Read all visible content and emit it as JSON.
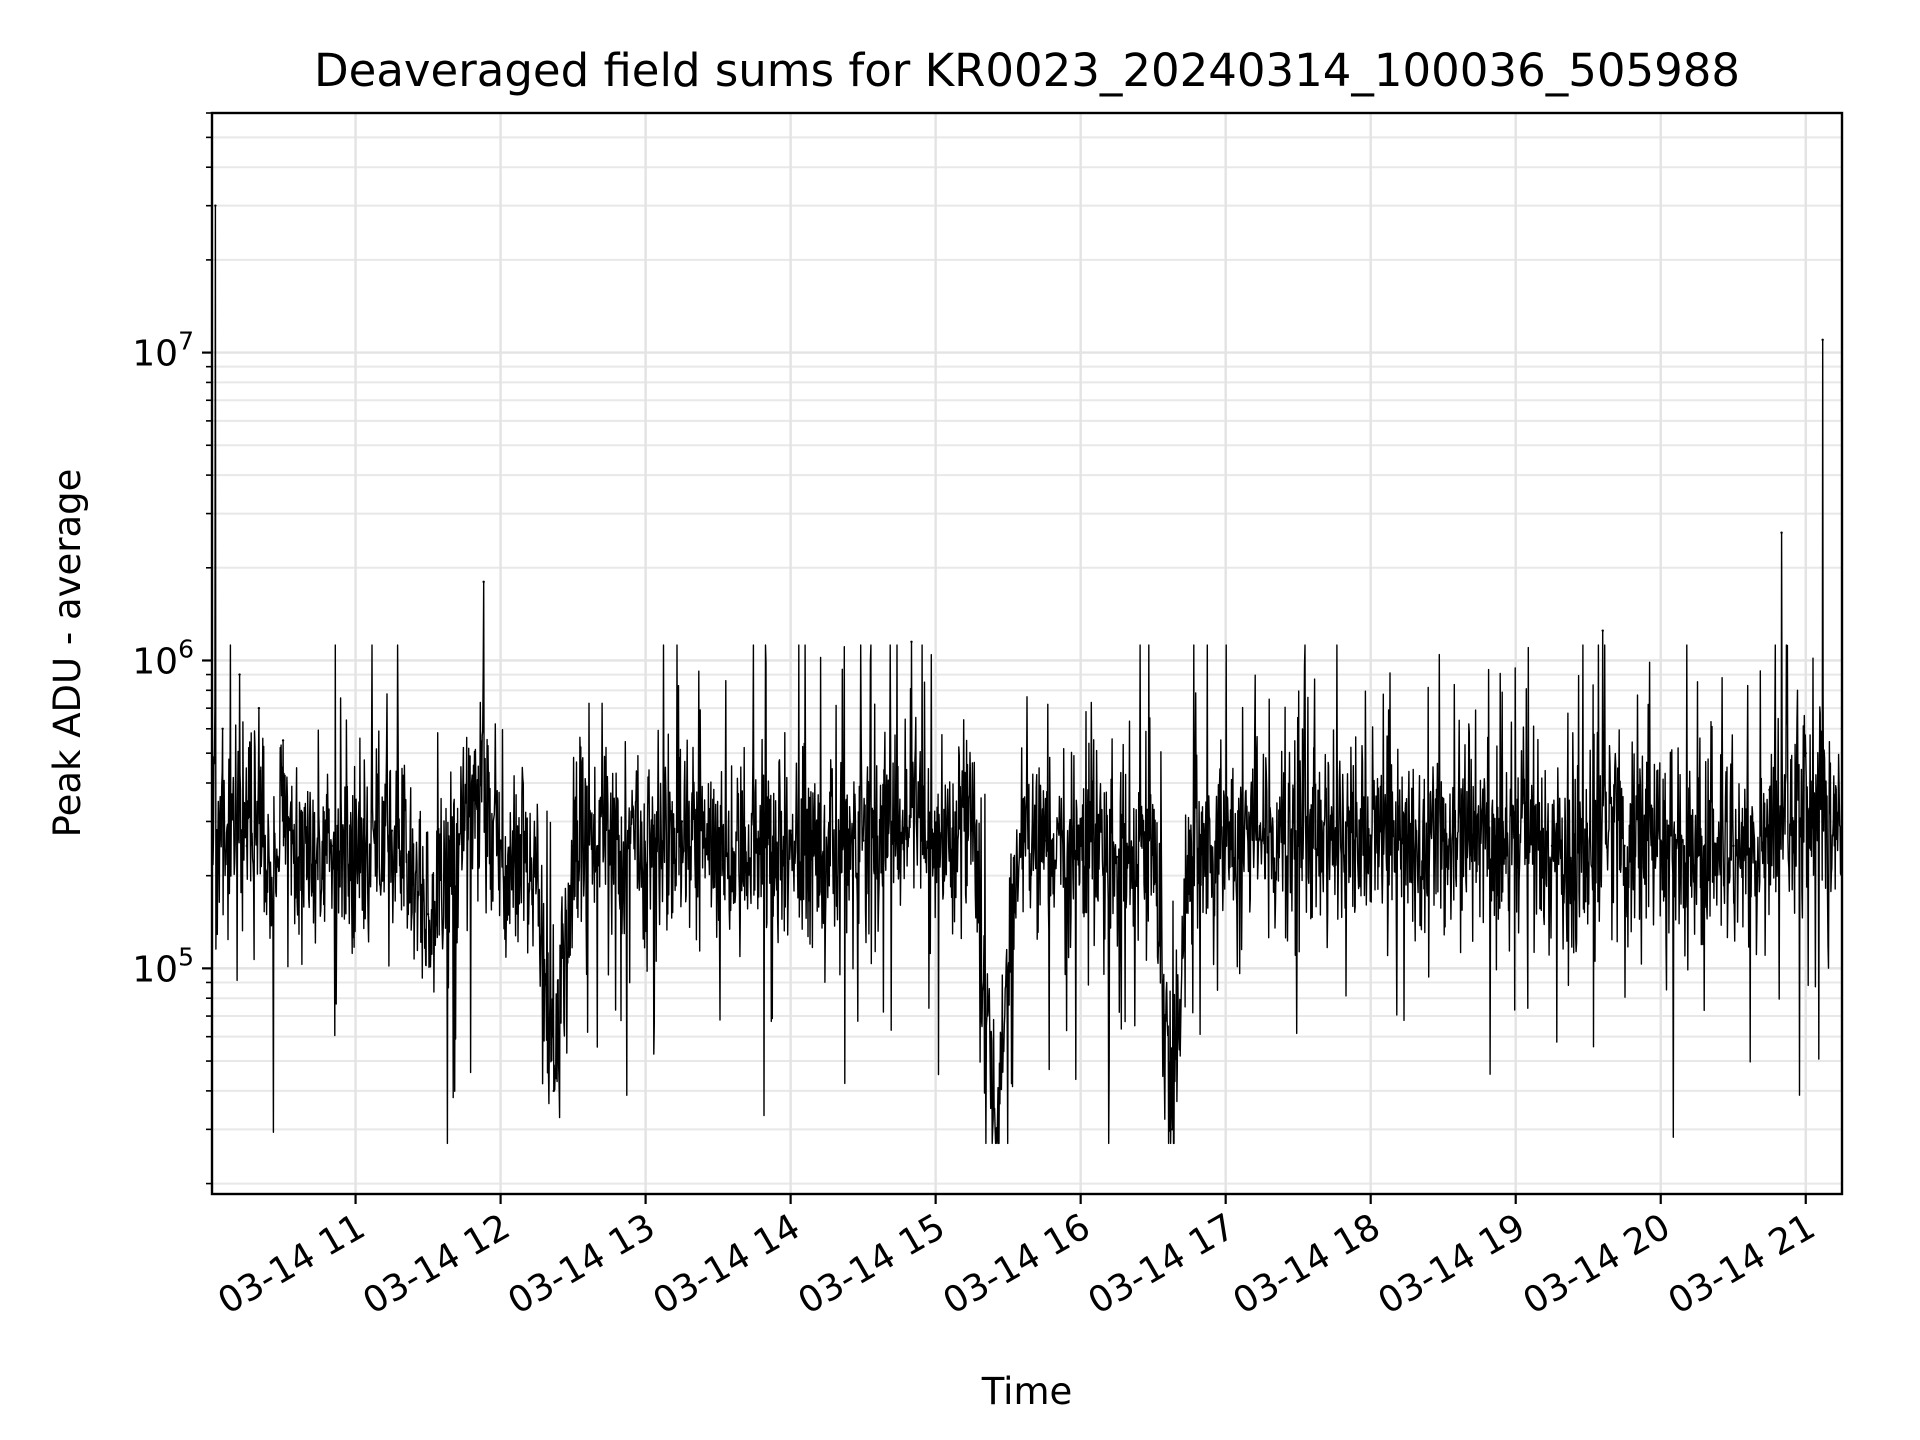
{
  "chart_data": {
    "type": "line",
    "title": "Deaveraged field sums for KR0023_20240314_100036_505988",
    "xlabel": "Time",
    "ylabel": "Peak ADU - average",
    "y_scale": "log",
    "ylim": [
      18500,
      60000000
    ],
    "xlim": [
      "2024-03-14 10:00:36",
      "2024-03-14 21:15:00"
    ],
    "grid": true,
    "legend": "none",
    "line_color": "#000000",
    "x_tick_labels": [
      "03-14 11",
      "03-14 12",
      "03-14 13",
      "03-14 14",
      "03-14 15",
      "03-14 16",
      "03-14 17",
      "03-14 18",
      "03-14 19",
      "03-14 20",
      "03-14 21"
    ],
    "x_ticks": [
      "2024-03-14 11:00",
      "2024-03-14 12:00",
      "2024-03-14 13:00",
      "2024-03-14 14:00",
      "2024-03-14 15:00",
      "2024-03-14 16:00",
      "2024-03-14 17:00",
      "2024-03-14 18:00",
      "2024-03-14 19:00",
      "2024-03-14 20:00",
      "2024-03-14 21:00"
    ],
    "y_tick_labels": [
      {
        "base": "10",
        "exp": "5",
        "value": 100000
      },
      {
        "base": "10",
        "exp": "6",
        "value": 1000000
      },
      {
        "base": "10",
        "exp": "7",
        "value": 10000000
      }
    ],
    "series": [
      {
        "x": [
          "2024-03-14 10:00:36",
          "2024-03-14 10:02",
          "2024-03-14 10:03",
          "2024-03-14 10:05",
          "2024-03-14 10:08",
          "2024-03-14 10:12",
          "2024-03-14 10:15",
          "2024-03-14 10:20",
          "2024-03-14 10:25",
          "2024-03-14 10:30",
          "2024-03-14 10:40",
          "2024-03-14 10:50",
          "2024-03-14 11:00",
          "2024-03-14 11:15",
          "2024-03-14 11:30",
          "2024-03-14 11:45",
          "2024-03-14 11:53",
          "2024-03-14 12:00",
          "2024-03-14 12:15",
          "2024-03-14 12:22",
          "2024-03-14 12:30",
          "2024-03-14 12:45",
          "2024-03-14 13:00",
          "2024-03-14 13:15",
          "2024-03-14 13:30",
          "2024-03-14 13:45",
          "2024-03-14 14:00",
          "2024-03-14 14:15",
          "2024-03-14 14:30",
          "2024-03-14 14:45",
          "2024-03-14 14:50",
          "2024-03-14 15:00",
          "2024-03-14 15:15",
          "2024-03-14 15:25",
          "2024-03-14 15:35",
          "2024-03-14 15:45",
          "2024-03-14 16:00",
          "2024-03-14 16:15",
          "2024-03-14 16:30",
          "2024-03-14 16:38",
          "2024-03-14 16:45",
          "2024-03-14 17:00",
          "2024-03-14 17:15",
          "2024-03-14 17:30",
          "2024-03-14 17:45",
          "2024-03-14 18:00",
          "2024-03-14 18:15",
          "2024-03-14 18:30",
          "2024-03-14 18:45",
          "2024-03-14 19:00",
          "2024-03-14 19:15",
          "2024-03-14 19:30",
          "2024-03-14 19:36",
          "2024-03-14 19:45",
          "2024-03-14 20:00",
          "2024-03-14 20:15",
          "2024-03-14 20:30",
          "2024-03-14 20:40",
          "2024-03-14 20:45",
          "2024-03-14 20:50",
          "2024-03-14 21:00",
          "2024-03-14 21:07",
          "2024-03-14 21:15"
        ],
        "y": [
          4000000,
          30000000,
          250000,
          600000,
          280000,
          900000,
          250000,
          700000,
          180000,
          550000,
          200000,
          250000,
          220000,
          280000,
          150000,
          300000,
          1800000,
          260000,
          200000,
          40000,
          250000,
          280000,
          220000,
          300000,
          230000,
          260000,
          280000,
          240000,
          260000,
          300000,
          1150000,
          250000,
          280000,
          28000,
          250000,
          260000,
          250000,
          230000,
          270000,
          30000,
          280000,
          270000,
          260000,
          250000,
          280000,
          270000,
          240000,
          260000,
          250000,
          270000,
          250000,
          220000,
          1250000,
          250000,
          260000,
          230000,
          250000,
          200000,
          380000,
          2600000,
          500000,
          11000000,
          600000
        ]
      }
    ]
  }
}
